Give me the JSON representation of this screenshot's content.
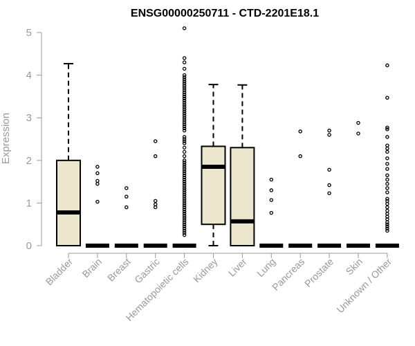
{
  "chart_data": {
    "type": "box",
    "title": "ENSG00000250711 - CTD-2201E18.1",
    "xlabel": "",
    "ylabel": "Expression",
    "ylim": [
      0,
      5.1
    ],
    "yticks": [
      0,
      1,
      2,
      3,
      4,
      5
    ],
    "box_fill": "#ede6cf",
    "categories": [
      "Bladder",
      "Brain",
      "Breast",
      "Gastric",
      "Hematopoietic cells",
      "Kidney",
      "Liver",
      "Lung",
      "Pancreas",
      "Prostate",
      "Skin",
      "Unknown / Other"
    ],
    "boxes": [
      {
        "category": "Bladder",
        "min": 0,
        "q1": 0,
        "median": 0.78,
        "q3": 2.0,
        "max": 4.27,
        "outliers": []
      },
      {
        "category": "Brain",
        "min": 0,
        "q1": 0,
        "median": 0,
        "q3": 0,
        "max": 0,
        "outliers": [
          1.85,
          1.7,
          1.52,
          1.45,
          1.03
        ]
      },
      {
        "category": "Breast",
        "min": 0,
        "q1": 0,
        "median": 0,
        "q3": 0,
        "max": 0,
        "outliers": [
          1.35,
          1.15,
          0.9
        ]
      },
      {
        "category": "Gastric",
        "min": 0,
        "q1": 0,
        "median": 0,
        "q3": 0,
        "max": 0,
        "outliers": [
          2.45,
          2.1,
          1.05,
          0.97,
          0.9
        ]
      },
      {
        "category": "Hematopoietic cells",
        "min": 0,
        "q1": 0,
        "median": 0,
        "q3": 0,
        "max": 0,
        "outliers": [
          5.1,
          4.4,
          4.3,
          4.15,
          4.0,
          3.95,
          3.9,
          3.85,
          3.8,
          3.75,
          3.7,
          3.65,
          3.6,
          3.55,
          3.5,
          3.45,
          3.4,
          3.35,
          3.3,
          3.25,
          3.2,
          3.15,
          3.1,
          3.05,
          3.0,
          2.95,
          2.9,
          2.85,
          2.8,
          2.75,
          2.7,
          2.55,
          2.5,
          2.45,
          2.4,
          2.3,
          2.2,
          2.1,
          2.0,
          1.95,
          1.9,
          1.85,
          1.8,
          1.75,
          1.7,
          1.65,
          1.6,
          1.55,
          1.5,
          1.45,
          1.4,
          1.35,
          1.3,
          1.25,
          1.2,
          1.15,
          1.1,
          1.05,
          1.0,
          0.95,
          0.9,
          0.85,
          0.8,
          0.75,
          0.7,
          0.65,
          0.6,
          0.55,
          0.5,
          0.45,
          0.4,
          0.35,
          0.3,
          0.25
        ]
      },
      {
        "category": "Kidney",
        "min": 0,
        "q1": 0.5,
        "median": 1.85,
        "q3": 2.33,
        "max": 3.78,
        "outliers": []
      },
      {
        "category": "Liver",
        "min": 0,
        "q1": 0,
        "median": 0.57,
        "q3": 2.3,
        "max": 3.77,
        "outliers": []
      },
      {
        "category": "Lung",
        "min": 0,
        "q1": 0,
        "median": 0,
        "q3": 0,
        "max": 0,
        "outliers": [
          1.55,
          1.3,
          1.07,
          0.77
        ]
      },
      {
        "category": "Pancreas",
        "min": 0,
        "q1": 0,
        "median": 0,
        "q3": 0,
        "max": 0,
        "outliers": [
          2.68,
          2.1
        ]
      },
      {
        "category": "Prostate",
        "min": 0,
        "q1": 0,
        "median": 0,
        "q3": 0,
        "max": 0,
        "outliers": [
          2.7,
          2.6,
          1.78,
          1.42,
          1.23
        ]
      },
      {
        "category": "Skin",
        "min": 0,
        "q1": 0,
        "median": 0,
        "q3": 0,
        "max": 0,
        "outliers": [
          2.88,
          2.63
        ]
      },
      {
        "category": "Unknown / Other",
        "min": 0,
        "q1": 0,
        "median": 0,
        "q3": 0,
        "max": 0,
        "outliers": [
          4.23,
          3.47,
          2.77,
          2.73,
          2.55,
          2.35,
          2.28,
          2.2,
          2.05,
          1.92,
          1.8,
          1.65,
          1.55,
          1.45,
          1.35,
          1.25,
          1.1,
          1.05,
          0.98,
          0.9,
          0.82,
          0.75,
          0.68,
          0.62,
          0.55,
          0.5,
          0.45,
          0.4,
          0.35
        ]
      }
    ]
  }
}
